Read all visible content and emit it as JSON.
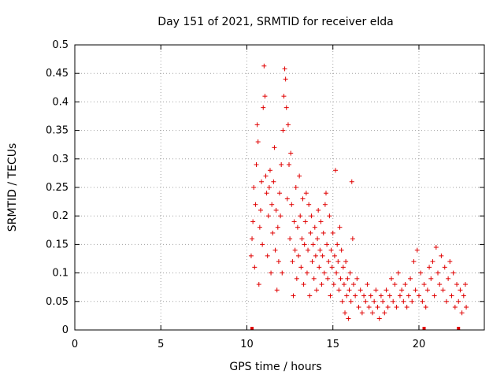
{
  "chart_data": {
    "type": "scatter",
    "title": "Day 151 of 2021, SRMTID for receiver elda",
    "xlabel": "GPS time / hours",
    "ylabel": "SRMTID / TECUs",
    "xlim": [
      0,
      23.8
    ],
    "ylim": [
      0,
      0.5
    ],
    "x_ticks": [
      0,
      5,
      10,
      15,
      20
    ],
    "x_tick_labels": [
      "0",
      "5",
      "10",
      "15",
      "20"
    ],
    "y_ticks": [
      0,
      0.05,
      0.1,
      0.15,
      0.2,
      0.25,
      0.3,
      0.35,
      0.4,
      0.45,
      0.5
    ],
    "y_tick_labels": [
      "0",
      "0.05",
      "0.1",
      "0.15",
      "0.2",
      "0.25",
      "0.3",
      "0.35",
      "0.4",
      "0.45",
      "0.5"
    ],
    "grid": true,
    "marker": "+",
    "color": "#e00000",
    "series": [
      {
        "name": "SRMTID",
        "envelope_description_hours_vs_value": "sampled approximation of dense point cloud",
        "points": [
          [
            10.25,
            0.13
          ],
          [
            10.3,
            0.16
          ],
          [
            10.35,
            0.19
          ],
          [
            10.4,
            0.25
          ],
          [
            10.45,
            0.11
          ],
          [
            10.5,
            0.22
          ],
          [
            10.55,
            0.29
          ],
          [
            10.6,
            0.36
          ],
          [
            10.65,
            0.33
          ],
          [
            10.7,
            0.08
          ],
          [
            10.75,
            0.18
          ],
          [
            10.8,
            0.21
          ],
          [
            10.85,
            0.26
          ],
          [
            10.9,
            0.15
          ],
          [
            10.95,
            0.39
          ],
          [
            11.0,
            0.463
          ],
          [
            11.05,
            0.41
          ],
          [
            11.1,
            0.27
          ],
          [
            11.15,
            0.24
          ],
          [
            11.2,
            0.13
          ],
          [
            11.25,
            0.2
          ],
          [
            11.3,
            0.25
          ],
          [
            11.35,
            0.28
          ],
          [
            11.4,
            0.1
          ],
          [
            11.45,
            0.22
          ],
          [
            11.5,
            0.17
          ],
          [
            11.55,
            0.26
          ],
          [
            11.6,
            0.32
          ],
          [
            11.65,
            0.14
          ],
          [
            11.7,
            0.21
          ],
          [
            11.75,
            0.07
          ],
          [
            11.8,
            0.18
          ],
          [
            11.85,
            0.12
          ],
          [
            11.9,
            0.24
          ],
          [
            11.95,
            0.2
          ],
          [
            12.0,
            0.29
          ],
          [
            12.05,
            0.1
          ],
          [
            12.1,
            0.35
          ],
          [
            12.15,
            0.41
          ],
          [
            12.2,
            0.458
          ],
          [
            12.25,
            0.44
          ],
          [
            12.3,
            0.39
          ],
          [
            12.35,
            0.23
          ],
          [
            12.4,
            0.36
          ],
          [
            12.45,
            0.29
          ],
          [
            12.5,
            0.16
          ],
          [
            12.55,
            0.31
          ],
          [
            12.6,
            0.22
          ],
          [
            12.65,
            0.12
          ],
          [
            12.7,
            0.06
          ],
          [
            12.75,
            0.19
          ],
          [
            12.8,
            0.14
          ],
          [
            12.85,
            0.25
          ],
          [
            12.9,
            0.09
          ],
          [
            12.95,
            0.18
          ],
          [
            13.0,
            0.13
          ],
          [
            13.05,
            0.27
          ],
          [
            13.1,
            0.2
          ],
          [
            13.15,
            0.11
          ],
          [
            13.2,
            0.16
          ],
          [
            13.25,
            0.23
          ],
          [
            13.3,
            0.08
          ],
          [
            13.35,
            0.15
          ],
          [
            13.4,
            0.19
          ],
          [
            13.45,
            0.24
          ],
          [
            13.5,
            0.1
          ],
          [
            13.55,
            0.14
          ],
          [
            13.6,
            0.22
          ],
          [
            13.65,
            0.06
          ],
          [
            13.7,
            0.17
          ],
          [
            13.75,
            0.2
          ],
          [
            13.8,
            0.12
          ],
          [
            13.85,
            0.15
          ],
          [
            13.9,
            0.09
          ],
          [
            13.95,
            0.18
          ],
          [
            14.0,
            0.13
          ],
          [
            14.05,
            0.07
          ],
          [
            14.1,
            0.16
          ],
          [
            14.15,
            0.21
          ],
          [
            14.2,
            0.11
          ],
          [
            14.25,
            0.14
          ],
          [
            14.3,
            0.19
          ],
          [
            14.35,
            0.08
          ],
          [
            14.4,
            0.13
          ],
          [
            14.45,
            0.17
          ],
          [
            14.5,
            0.1
          ],
          [
            14.55,
            0.22
          ],
          [
            14.6,
            0.24
          ],
          [
            14.65,
            0.15
          ],
          [
            14.7,
            0.09
          ],
          [
            14.75,
            0.12
          ],
          [
            14.8,
            0.2
          ],
          [
            14.85,
            0.06
          ],
          [
            14.9,
            0.14
          ],
          [
            14.95,
            0.11
          ],
          [
            15.0,
            0.17
          ],
          [
            15.05,
            0.08
          ],
          [
            15.1,
            0.13
          ],
          [
            15.15,
            0.28
          ],
          [
            15.2,
            0.1
          ],
          [
            15.25,
            0.15
          ],
          [
            15.3,
            0.12
          ],
          [
            15.35,
            0.07
          ],
          [
            15.4,
            0.18
          ],
          [
            15.45,
            0.09
          ],
          [
            15.5,
            0.14
          ],
          [
            15.55,
            0.05
          ],
          [
            15.6,
            0.11
          ],
          [
            15.65,
            0.08
          ],
          [
            15.7,
            0.03
          ],
          [
            15.75,
            0.12
          ],
          [
            15.8,
            0.06
          ],
          [
            15.85,
            0.09
          ],
          [
            15.9,
            0.02
          ],
          [
            15.95,
            0.07
          ],
          [
            16.0,
            0.1
          ],
          [
            16.05,
            0.05
          ],
          [
            16.1,
            0.26
          ],
          [
            16.15,
            0.16
          ],
          [
            16.2,
            0.08
          ],
          [
            16.3,
            0.06
          ],
          [
            16.4,
            0.09
          ],
          [
            16.5,
            0.04
          ],
          [
            16.6,
            0.07
          ],
          [
            16.7,
            0.03
          ],
          [
            16.8,
            0.06
          ],
          [
            16.9,
            0.05
          ],
          [
            17.0,
            0.08
          ],
          [
            17.1,
            0.04
          ],
          [
            17.2,
            0.06
          ],
          [
            17.3,
            0.03
          ],
          [
            17.4,
            0.05
          ],
          [
            17.5,
            0.07
          ],
          [
            17.6,
            0.04
          ],
          [
            17.7,
            0.02
          ],
          [
            17.8,
            0.06
          ],
          [
            17.9,
            0.05
          ],
          [
            18.0,
            0.03
          ],
          [
            18.1,
            0.07
          ],
          [
            18.2,
            0.04
          ],
          [
            18.3,
            0.06
          ],
          [
            18.4,
            0.09
          ],
          [
            18.5,
            0.05
          ],
          [
            18.6,
            0.08
          ],
          [
            18.7,
            0.04
          ],
          [
            18.8,
            0.1
          ],
          [
            18.9,
            0.06
          ],
          [
            19.0,
            0.07
          ],
          [
            19.1,
            0.05
          ],
          [
            19.2,
            0.08
          ],
          [
            19.3,
            0.04
          ],
          [
            19.4,
            0.06
          ],
          [
            19.5,
            0.09
          ],
          [
            19.6,
            0.05
          ],
          [
            19.7,
            0.12
          ],
          [
            19.8,
            0.07
          ],
          [
            19.9,
            0.14
          ],
          [
            20.0,
            0.06
          ],
          [
            20.1,
            0.1
          ],
          [
            20.2,
            0.05
          ],
          [
            20.3,
            0.08
          ],
          [
            20.4,
            0.04
          ],
          [
            20.5,
            0.07
          ],
          [
            20.6,
            0.11
          ],
          [
            20.7,
            0.09
          ],
          [
            20.8,
            0.12
          ],
          [
            20.9,
            0.06
          ],
          [
            21.0,
            0.145
          ],
          [
            21.1,
            0.1
          ],
          [
            21.2,
            0.08
          ],
          [
            21.3,
            0.13
          ],
          [
            21.4,
            0.07
          ],
          [
            21.5,
            0.11
          ],
          [
            21.6,
            0.05
          ],
          [
            21.7,
            0.09
          ],
          [
            21.8,
            0.12
          ],
          [
            21.9,
            0.06
          ],
          [
            22.0,
            0.1
          ],
          [
            22.1,
            0.04
          ],
          [
            22.2,
            0.08
          ],
          [
            22.3,
            0.05
          ],
          [
            22.4,
            0.07
          ],
          [
            22.5,
            0.03
          ],
          [
            22.6,
            0.06
          ],
          [
            22.7,
            0.08
          ],
          [
            22.75,
            0.04
          ]
        ]
      }
    ],
    "gap_markers_x": [
      10.3,
      20.3,
      22.3
    ]
  }
}
